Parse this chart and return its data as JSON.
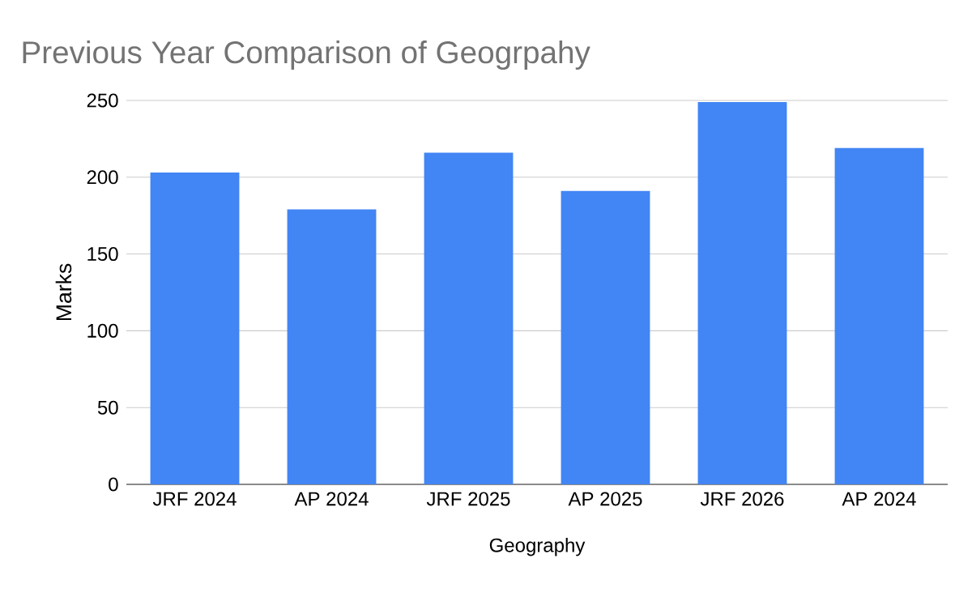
{
  "chart_data": {
    "type": "bar",
    "title": "Previous Year Comparison of Geogrpahy",
    "xlabel": "Geography",
    "ylabel": "Marks",
    "categories": [
      "JRF 2024",
      "AP 2024",
      "JRF 2025",
      "AP 2025",
      "JRF 2026",
      "AP 2024"
    ],
    "values": [
      203,
      179,
      216,
      191,
      249,
      219
    ],
    "color": "#4285f4",
    "ylim": [
      0,
      250
    ],
    "yticks": [
      0,
      50,
      100,
      150,
      200,
      250
    ],
    "grid": "y"
  }
}
